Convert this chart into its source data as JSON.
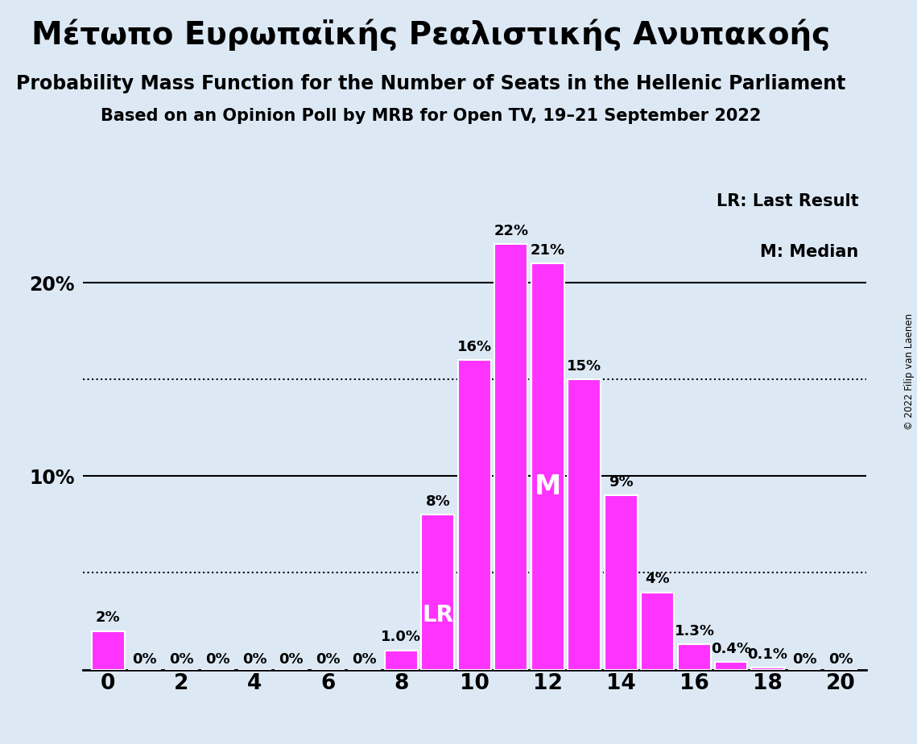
{
  "title1": "Μέτωπο Ευρωπαϊκής Ρεαλιστικής Ανυπακοής",
  "title2": "Probability Mass Function for the Number of Seats in the Hellenic Parliament",
  "title3": "Based on an Opinion Poll by MRB for Open TV, 19–21 September 2022",
  "copyright": "© 2022 Filip van Laenen",
  "seats": [
    0,
    1,
    2,
    3,
    4,
    5,
    6,
    7,
    8,
    9,
    10,
    11,
    12,
    13,
    14,
    15,
    16,
    17,
    18,
    19,
    20
  ],
  "probabilities": [
    2,
    0,
    0,
    0,
    0,
    0,
    0,
    0,
    1,
    8,
    16,
    22,
    21,
    15,
    9,
    4,
    1.3,
    0.4,
    0.1,
    0,
    0
  ],
  "bar_labels": [
    "2%",
    "0%",
    "0%",
    "0%",
    "0%",
    "0%",
    "0%",
    "0%",
    "1.0%",
    "8%",
    "16%",
    "22%",
    "21%",
    "15%",
    "9%",
    "4%",
    "1.3%",
    "0.4%",
    "0.1%",
    "0%",
    "0%"
  ],
  "bar_color": "#FF33FF",
  "background_color": "#dce9f5",
  "lr_seat": 9,
  "median_seat": 12,
  "legend_lr": "LR: Last Result",
  "legend_m": "M: Median",
  "title1_fontsize": 28,
  "title2_fontsize": 17,
  "title3_fontsize": 15,
  "bar_label_fontsize": 13,
  "ytick_fontsize": 17,
  "xtick_fontsize": 19
}
